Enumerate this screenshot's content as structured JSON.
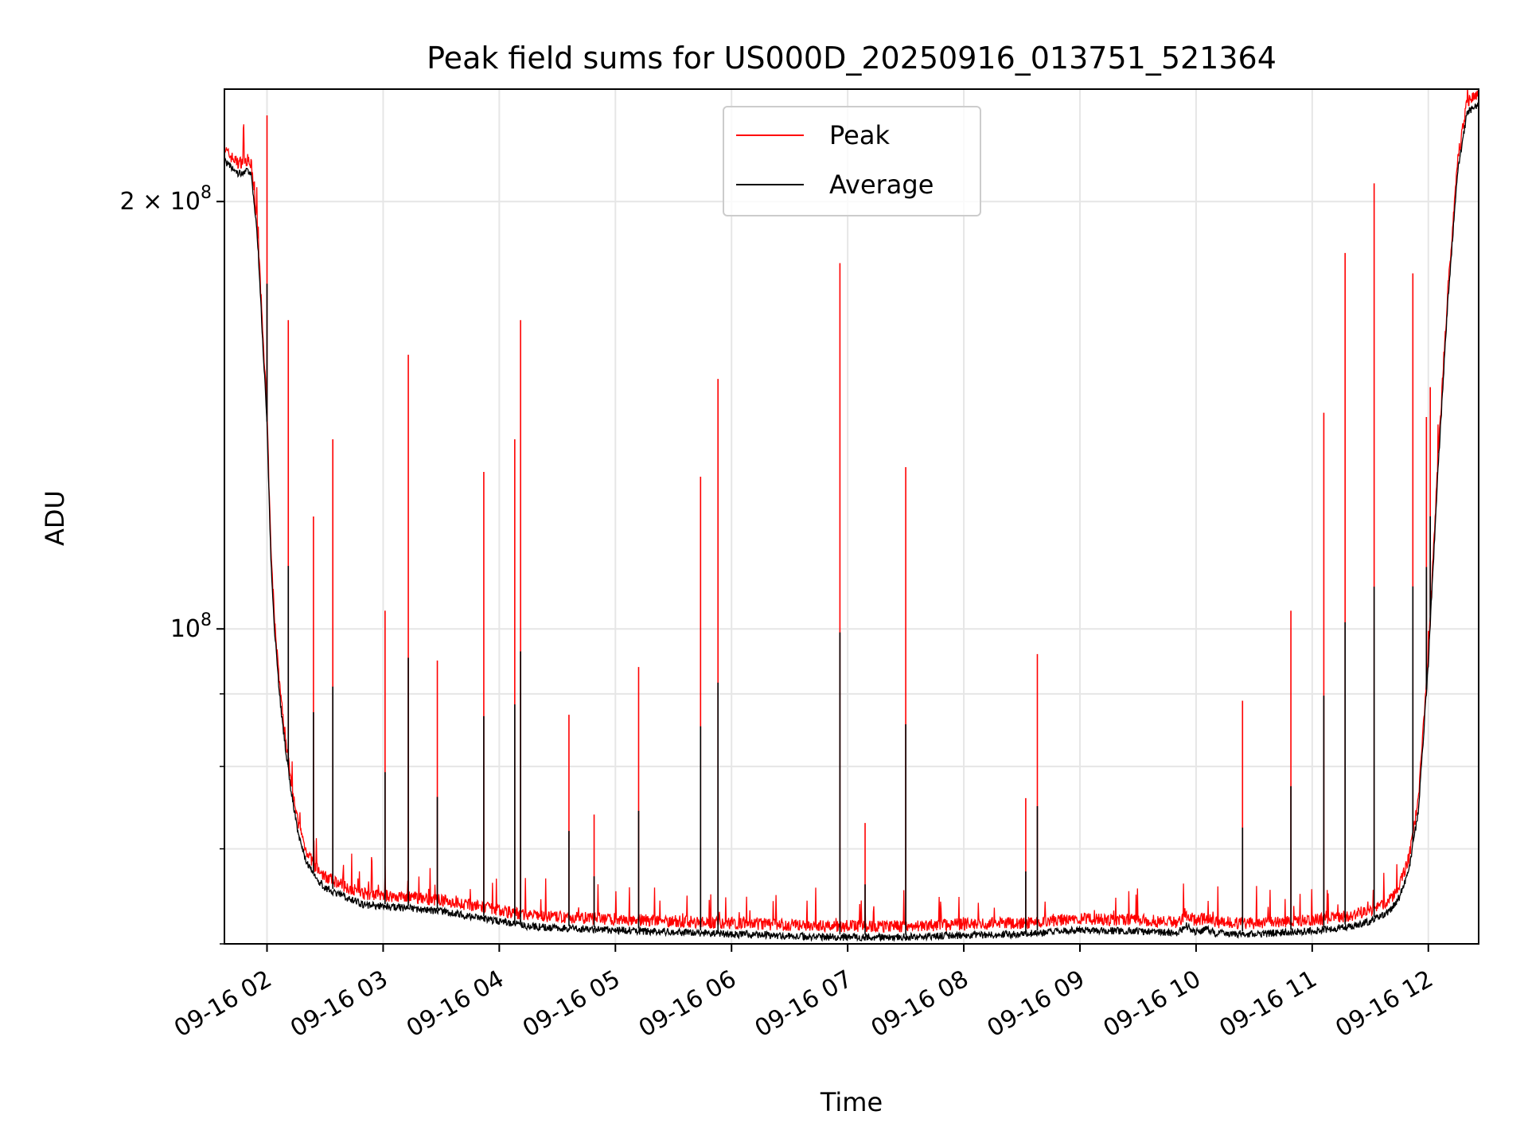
{
  "chart_data": {
    "type": "line",
    "title": "Peak field sums for US000D_20250916_013751_521364",
    "xlabel": "Time",
    "ylabel": "ADU",
    "yscale": "log",
    "xlim": [
      "2025-09-16 01:38",
      "2025-09-16 12:26"
    ],
    "ylim": [
      60000000,
      240000000
    ],
    "x_ticks": [
      "09-16 02",
      "09-16 03",
      "09-16 04",
      "09-16 05",
      "09-16 06",
      "09-16 07",
      "09-16 08",
      "09-16 09",
      "09-16 10",
      "09-16 11",
      "09-16 12"
    ],
    "y_ticks": [
      {
        "value": 100000000,
        "base": "10",
        "exp": "8"
      },
      {
        "value": 200000000,
        "coef": "2 × 10",
        "exp": "8"
      }
    ],
    "grid": true,
    "legend": {
      "placement": "upper center",
      "entries": [
        "Peak",
        "Average"
      ]
    },
    "colors": {
      "Peak": "#ff0000",
      "Average": "#000000",
      "grid": "#e6e6e6"
    },
    "series": [
      {
        "name": "Average",
        "x": [
          "01:38",
          "01:40",
          "01:45",
          "01:50",
          "01:52",
          "01:55",
          "02:00",
          "02:02",
          "02:04",
          "02:06",
          "02:08",
          "02:12",
          "02:16",
          "02:20",
          "02:25",
          "02:30",
          "02:40",
          "02:50",
          "03:00",
          "03:15",
          "03:30",
          "03:45",
          "04:00",
          "04:15",
          "04:30",
          "04:45",
          "05:00",
          "05:30",
          "06:00",
          "06:30",
          "07:00",
          "07:30",
          "08:00",
          "08:30",
          "09:00",
          "09:30",
          "09:50",
          "09:55",
          "10:00",
          "10:05",
          "10:10",
          "10:30",
          "11:00",
          "11:20",
          "11:30",
          "11:40",
          "11:45",
          "11:50",
          "11:55",
          "12:00",
          "12:05",
          "12:10",
          "12:15",
          "12:20",
          "12:26"
        ],
        "y": [
          215000000,
          213000000,
          210000000,
          211000000,
          209000000,
          190000000,
          140000000,
          112000000,
          100000000,
          92000000,
          86000000,
          78000000,
          72000000,
          69000000,
          67000000,
          66000000,
          65000000,
          64200000,
          64000000,
          63800000,
          63500000,
          63000000,
          62500000,
          62000000,
          61800000,
          61700000,
          61600000,
          61400000,
          61200000,
          61000000,
          60900000,
          60900000,
          61100000,
          61200000,
          61600000,
          61500000,
          61300000,
          62000000,
          61400000,
          61700000,
          61300000,
          61200000,
          61500000,
          62000000,
          62500000,
          63500000,
          65000000,
          68000000,
          75000000,
          95000000,
          130000000,
          170000000,
          210000000,
          232000000,
          235000000
        ]
      },
      {
        "name": "Peak",
        "spikes": [
          {
            "x": "02:00",
            "y": 230000000
          },
          {
            "x": "02:11",
            "y": 165000000
          },
          {
            "x": "02:24",
            "y": 120000000
          },
          {
            "x": "02:34",
            "y": 136000000
          },
          {
            "x": "03:01",
            "y": 103000000
          },
          {
            "x": "03:13",
            "y": 156000000
          },
          {
            "x": "03:28",
            "y": 95000000
          },
          {
            "x": "03:52",
            "y": 129000000
          },
          {
            "x": "04:08",
            "y": 136000000
          },
          {
            "x": "04:11",
            "y": 165000000
          },
          {
            "x": "04:36",
            "y": 87000000
          },
          {
            "x": "04:49",
            "y": 74000000
          },
          {
            "x": "05:12",
            "y": 94000000
          },
          {
            "x": "05:44",
            "y": 128000000
          },
          {
            "x": "05:53",
            "y": 150000000
          },
          {
            "x": "06:56",
            "y": 181000000
          },
          {
            "x": "07:09",
            "y": 73000000
          },
          {
            "x": "07:30",
            "y": 130000000
          },
          {
            "x": "08:38",
            "y": 96000000
          },
          {
            "x": "08:32",
            "y": 76000000
          },
          {
            "x": "10:24",
            "y": 89000000
          },
          {
            "x": "10:49",
            "y": 103000000
          },
          {
            "x": "11:06",
            "y": 142000000
          },
          {
            "x": "11:17",
            "y": 184000000
          },
          {
            "x": "11:32",
            "y": 206000000
          },
          {
            "x": "11:52",
            "y": 178000000
          },
          {
            "x": "11:59",
            "y": 141000000
          },
          {
            "x": "12:01",
            "y": 148000000
          }
        ]
      }
    ]
  }
}
